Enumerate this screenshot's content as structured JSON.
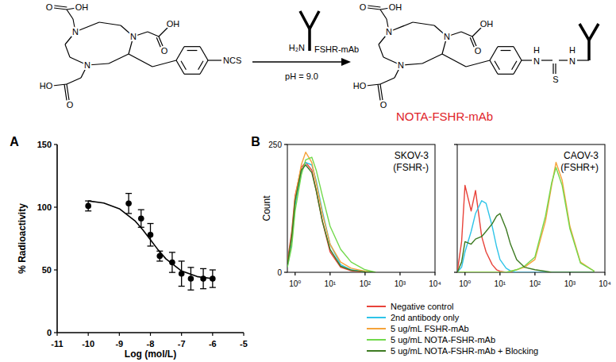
{
  "scheme": {
    "reactant_labels": [
      "O",
      "OH",
      "N",
      "N",
      "N",
      "OH",
      "O",
      "HO",
      "O",
      "NCS"
    ],
    "amine": "H₂N",
    "reagent": "FSHR-mAb",
    "condition": "pH = 9.0",
    "product_labels": [
      "O",
      "OH",
      "N",
      "N",
      "N",
      "OH",
      "O",
      "HO",
      "O",
      "H",
      "N",
      "S",
      "H",
      "N"
    ],
    "product_name": "NOTA-FSHR-mAb"
  },
  "chart_data": [
    {
      "type": "scatter",
      "panel": "A",
      "x_label": "Log (mol/L)",
      "y_label": "% Radioactivity",
      "xlim": [
        -11,
        -5
      ],
      "xticks": [
        -11,
        -10,
        -9,
        -8,
        -7,
        -6,
        -5
      ],
      "ylim": [
        0,
        150
      ],
      "yticks": [
        0,
        50,
        100,
        150
      ],
      "series": [
        {
          "type": "scatter",
          "color": "#000000",
          "marker": "circle",
          "x": [
            -10,
            -8.7,
            -8.3,
            -8,
            -7.7,
            -7.3,
            -7,
            -6.7,
            -6.3,
            -6
          ],
          "values": [
            101,
            103,
            91,
            78,
            61,
            56,
            47,
            43,
            43,
            43
          ],
          "errors": [
            4,
            8,
            7,
            9,
            4,
            8,
            10,
            9,
            8,
            7
          ]
        },
        {
          "type": "line",
          "color": "#000000",
          "line_style": "solid",
          "x": [
            -10,
            -9.5,
            -9,
            -8.5,
            -8.25,
            -8,
            -7.75,
            -7.5,
            -7,
            -6.5,
            -6
          ],
          "values": [
            105,
            103.3,
            98.8,
            89.2,
            82.1,
            74,
            65.9,
            58.8,
            49.2,
            44.7,
            43
          ]
        }
      ]
    },
    {
      "type": "line",
      "panel": "B",
      "title": "SKOV-3",
      "subtitle": "(FSHR-)",
      "y_label": "Count",
      "log": "x",
      "xlim": [
        0.6,
        10000
      ],
      "xticks": [
        {
          "value": 1,
          "label": "10⁰"
        },
        {
          "value": 10,
          "label": "10¹"
        },
        {
          "value": 100,
          "label": "10²"
        },
        {
          "value": 1000,
          "label": "10³"
        },
        {
          "value": 10000,
          "label": "10⁴"
        }
      ],
      "ylim": [
        0,
        250
      ],
      "yticks": [
        0,
        250
      ],
      "legend": "bottom",
      "x": [
        0.6,
        0.8,
        1,
        1.5,
        2,
        3,
        4,
        6,
        10,
        20,
        40,
        100,
        200
      ],
      "series": [
        {
          "name": "Negative control",
          "color": "#e8433a",
          "values": [
            20,
            80,
            150,
            205,
            215,
            200,
            160,
            100,
            40,
            10,
            3,
            0,
            0
          ]
        },
        {
          "name": "2nd antibody only",
          "color": "#2ec4e8",
          "values": [
            10,
            60,
            130,
            195,
            215,
            210,
            180,
            120,
            55,
            15,
            5,
            1,
            0
          ]
        },
        {
          "name": "5 ug/mL FSHR-mAb",
          "color": "#f5a33a",
          "values": [
            15,
            70,
            145,
            210,
            235,
            215,
            175,
            115,
            55,
            20,
            8,
            2,
            0
          ]
        },
        {
          "name": "5 ug/mL NOTA-FSHR-mAb",
          "color": "#72d94c",
          "values": [
            10,
            50,
            120,
            190,
            220,
            225,
            200,
            150,
            90,
            45,
            20,
            5,
            0
          ]
        },
        {
          "name": "5 ug/mL NOTA-FSHR-mAb + Blocking",
          "color": "#3d7a22",
          "values": [
            15,
            70,
            140,
            200,
            210,
            195,
            160,
            100,
            45,
            12,
            4,
            1,
            0
          ]
        }
      ]
    },
    {
      "type": "line",
      "title": "CAOV-3",
      "subtitle": "(FSHR+)",
      "log": "x",
      "xlim": [
        0.6,
        10000
      ],
      "xticks": [
        {
          "value": 1,
          "label": "10⁰"
        },
        {
          "value": 10,
          "label": "10¹"
        },
        {
          "value": 100,
          "label": "10²"
        },
        {
          "value": 1000,
          "label": "10³"
        },
        {
          "value": 10000,
          "label": "10⁴"
        }
      ],
      "ylim": [
        0,
        250
      ],
      "yticks": [
        0,
        250
      ],
      "tick_labels": "x",
      "x": [
        0.6,
        0.8,
        1,
        1.5,
        2,
        3,
        4,
        6,
        8,
        10,
        15,
        20,
        30,
        50,
        100,
        200,
        300,
        400,
        600,
        1000,
        2000,
        5000
      ],
      "series": [
        {
          "color": "#e8433a",
          "values": [
            0,
            60,
            170,
            120,
            160,
            70,
            40,
            15,
            5,
            2,
            0,
            0,
            0,
            0,
            0,
            0,
            0,
            0,
            0,
            0,
            0,
            0
          ]
        },
        {
          "color": "#2ec4e8",
          "values": [
            0,
            10,
            40,
            80,
            115,
            140,
            135,
            90,
            50,
            25,
            8,
            3,
            0,
            0,
            0,
            0,
            0,
            0,
            0,
            0,
            0,
            0
          ]
        },
        {
          "color": "#f5a33a",
          "values": [
            0,
            0,
            0,
            0,
            0,
            0,
            0,
            0,
            0,
            0,
            0,
            2,
            5,
            10,
            25,
            100,
            170,
            215,
            180,
            90,
            20,
            2
          ]
        },
        {
          "color": "#72d94c",
          "values": [
            0,
            0,
            0,
            0,
            0,
            0,
            0,
            0,
            0,
            0,
            0,
            2,
            5,
            12,
            30,
            110,
            175,
            205,
            170,
            85,
            18,
            2
          ]
        },
        {
          "color": "#3d7a22",
          "values": [
            0,
            20,
            60,
            55,
            65,
            70,
            80,
            95,
            110,
            115,
            85,
            55,
            25,
            10,
            5,
            2,
            0,
            0,
            0,
            0,
            0,
            0
          ]
        }
      ]
    }
  ]
}
